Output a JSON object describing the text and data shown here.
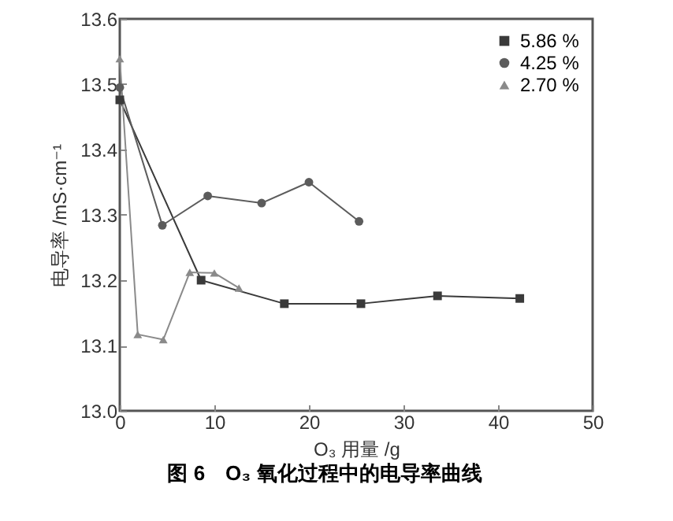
{
  "chart_data": {
    "type": "line",
    "title": "图 6　O₃ 氧化过程中的电导率曲线",
    "xlabel": "O₃ 用量 /g",
    "ylabel": "电导率 /mS·cm⁻¹",
    "series": [
      {
        "name": "5.86 %",
        "color": "#3a3a3a",
        "marker": "square",
        "x": [
          0,
          8.6,
          17.4,
          25.5,
          33.6,
          42.3
        ],
        "values": [
          13.476,
          13.2,
          13.164,
          13.164,
          13.176,
          13.172
        ]
      },
      {
        "name": "4.25 %",
        "color": "#5c5c5c",
        "marker": "circle",
        "x": [
          0,
          4.5,
          9.3,
          15.0,
          20.0,
          25.3
        ],
        "values": [
          13.495,
          13.284,
          13.329,
          13.318,
          13.35,
          13.29
        ]
      },
      {
        "name": "2.70 %",
        "color": "#8a8a8a",
        "marker": "triangle",
        "x": [
          0,
          1.9,
          4.6,
          7.4,
          10.0,
          12.6
        ],
        "values": [
          13.539,
          13.117,
          13.109,
          13.212,
          13.211,
          13.188
        ]
      }
    ],
    "xlim": [
      0,
      50
    ],
    "xticks": [
      0,
      10,
      20,
      30,
      40,
      50
    ],
    "ylim": [
      13.0,
      13.6
    ],
    "yticks": [
      {
        "value": 13.0,
        "label": "13.0"
      },
      {
        "value": 13.1,
        "label": "13.1"
      },
      {
        "value": 13.2,
        "label": "13.2"
      },
      {
        "value": 13.3,
        "label": "13.3"
      },
      {
        "value": 13.4,
        "label": "13.4"
      },
      {
        "value": 13.5,
        "label": "13.5"
      },
      {
        "value": 13.6,
        "label": "13.6"
      }
    ],
    "grid": false,
    "legend": "top right",
    "line_style": "solid"
  }
}
